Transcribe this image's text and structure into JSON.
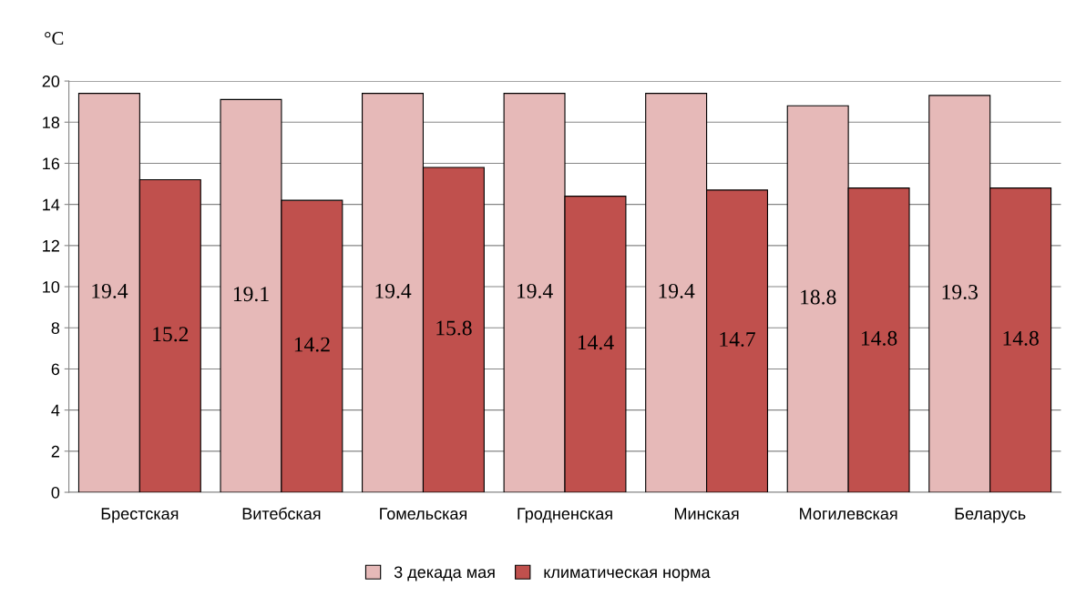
{
  "chart_data": {
    "type": "bar",
    "ylabel": "°C",
    "categories": [
      "Брестская",
      "Витебская",
      "Гомельская",
      "Гродненская",
      "Минская",
      "Могилевская",
      "Беларусь"
    ],
    "series": [
      {
        "name": "3 декада мая",
        "color": "#e6b9b8",
        "values": [
          19.4,
          19.1,
          19.4,
          19.4,
          19.4,
          18.8,
          19.3
        ]
      },
      {
        "name": "климатическая норма",
        "color": "#c0504d",
        "values": [
          15.2,
          14.2,
          15.8,
          14.4,
          14.7,
          14.8,
          14.8
        ]
      }
    ],
    "ylim": [
      0,
      20
    ],
    "yticks": [
      0,
      2,
      4,
      6,
      8,
      10,
      12,
      14,
      16,
      18,
      20
    ],
    "grid": "y",
    "legend": "bottom",
    "data_labels": true
  }
}
